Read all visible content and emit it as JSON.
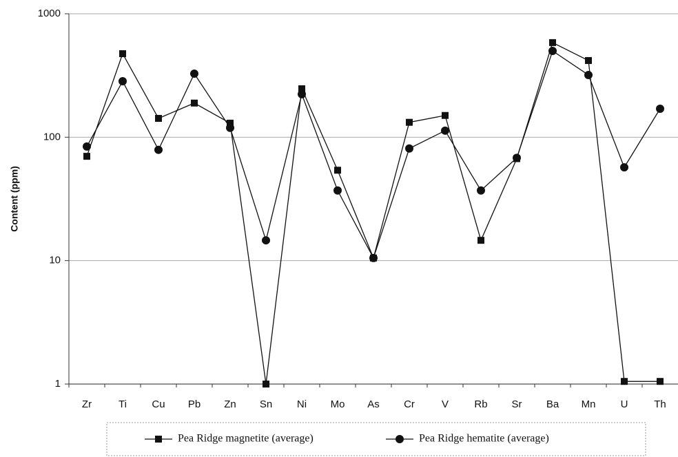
{
  "chart_data": {
    "type": "line",
    "y_label": "Content (ppm)",
    "categories": [
      "Zr",
      "Ti",
      "Cu",
      "Pb",
      "Zn",
      "Sn",
      "Ni",
      "Mo",
      "As",
      "Cr",
      "V",
      "Rb",
      "Sr",
      "Ba",
      "Mn",
      "U",
      "Th"
    ],
    "series": [
      {
        "name": "Pea Ridge magnetite (average)",
        "color": "#111111",
        "marker": "square",
        "values": [
          70,
          475,
          142,
          189,
          130,
          1,
          247,
          54,
          10.5,
          132,
          150,
          14.6,
          67,
          584,
          418,
          1.05,
          1.05
        ]
      },
      {
        "name": "Pea Ridge hematite (average)",
        "color": "#111111",
        "marker": "circle",
        "values": [
          84,
          284,
          79,
          327,
          119,
          14.6,
          223,
          37,
          10.5,
          81,
          113,
          37,
          68,
          500,
          319,
          57,
          170
        ]
      }
    ],
    "ylim": [
      1,
      1000
    ],
    "yticks": [
      1,
      10,
      100,
      1000
    ],
    "log_y": true,
    "grid": true,
    "legend": "bottom"
  }
}
